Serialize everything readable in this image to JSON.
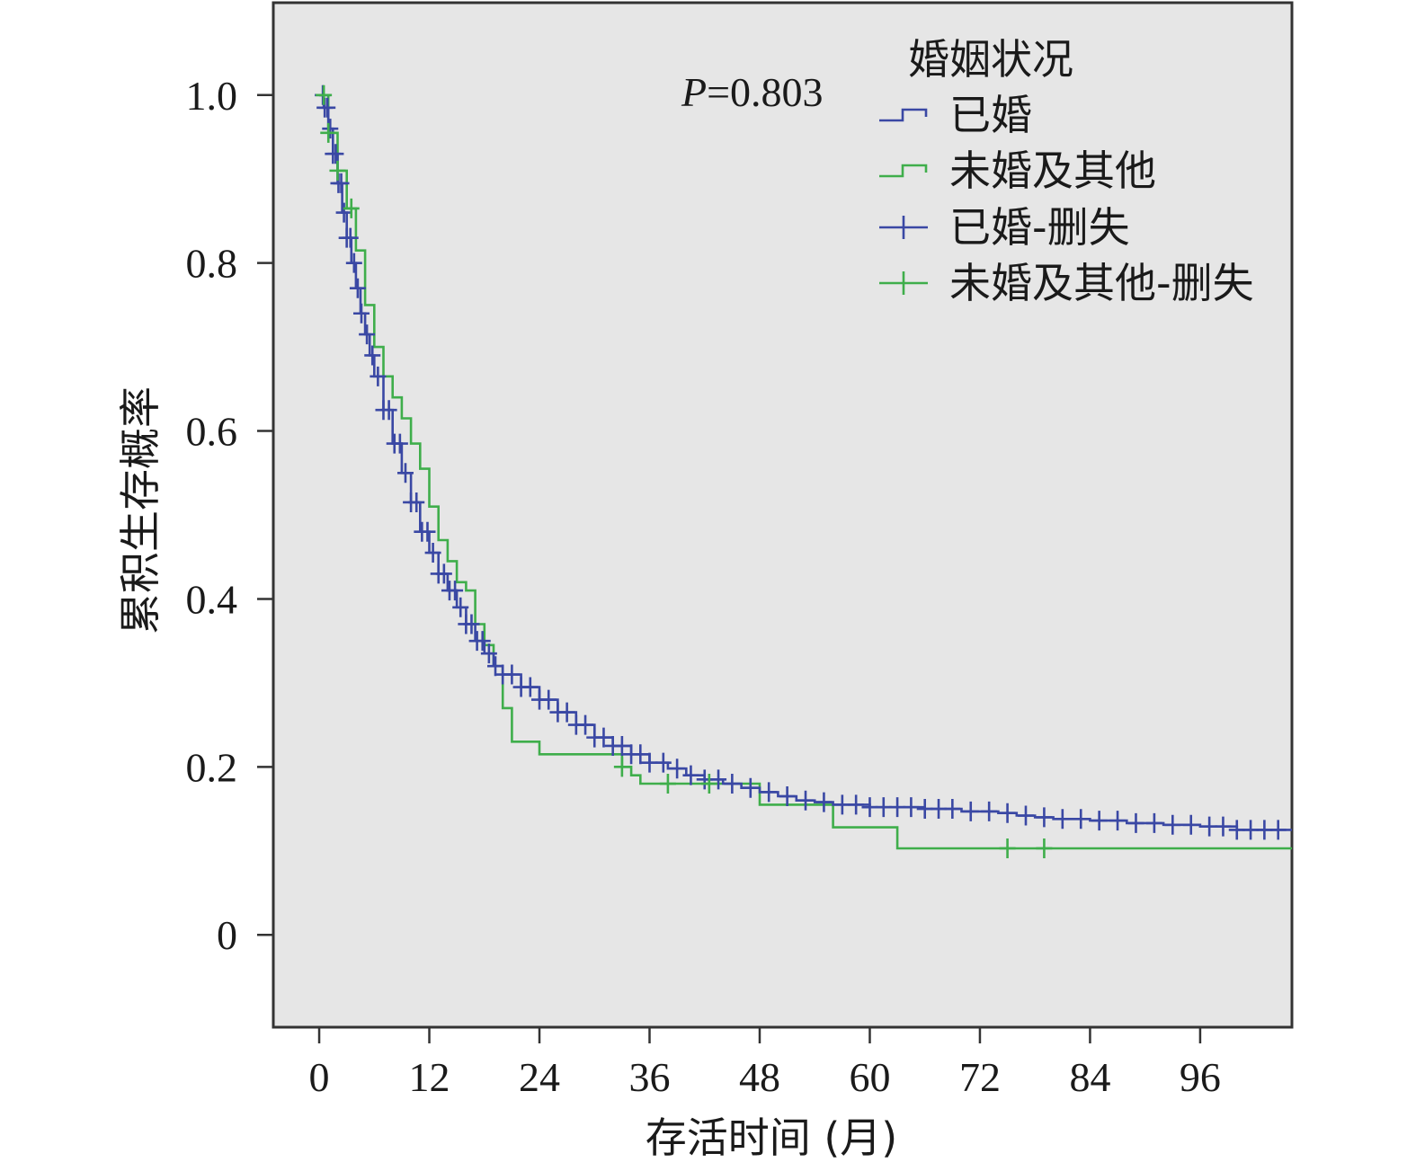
{
  "chart_data": {
    "type": "line",
    "subtype": "kaplan-meier",
    "xlabel": "存活时间 (月)",
    "ylabel": "累积生存概率",
    "xlim": [
      -5,
      106
    ],
    "ylim": [
      -0.11,
      1.11
    ],
    "xticks": [
      0,
      12,
      24,
      36,
      48,
      60,
      72,
      84,
      96
    ],
    "xtick_labels": [
      "0",
      "12",
      "24",
      "36",
      "48",
      "60",
      "72",
      "84",
      "96"
    ],
    "yticks": [
      0,
      0.2,
      0.4,
      0.6,
      0.8,
      1.0
    ],
    "ytick_labels": [
      "0",
      "0.2",
      "0.4",
      "0.6",
      "0.8",
      "1.0"
    ],
    "annotation": {
      "p_label": "P",
      "p_value": "=0.803"
    },
    "legend": {
      "title": "婚姻状况",
      "placement": "top-right",
      "entries": [
        {
          "label": "已婚",
          "kind": "step",
          "color": "#3a48a4"
        },
        {
          "label": "未婚及其他",
          "kind": "step",
          "color": "#3fae4b"
        },
        {
          "label": "已婚-删失",
          "kind": "censor",
          "color": "#3a48a4"
        },
        {
          "label": "未婚及其他-删失",
          "kind": "censor",
          "color": "#3fae4b"
        }
      ]
    },
    "series": [
      {
        "name": "已婚",
        "color": "#3a48a4",
        "x": [
          0,
          0.5,
          1,
          1.5,
          2,
          2.5,
          3,
          3.5,
          4,
          4.5,
          5,
          5.5,
          6,
          7,
          8,
          9,
          10,
          11,
          12,
          13,
          14,
          15,
          16,
          17,
          18,
          19,
          20,
          22,
          24,
          26,
          28,
          30,
          32,
          34,
          36,
          38,
          40,
          42,
          44,
          46,
          48,
          50,
          52,
          54,
          56,
          60,
          66,
          70,
          74,
          76,
          78,
          80,
          84,
          88,
          92,
          96,
          100,
          106
        ],
        "y": [
          1.0,
          0.985,
          0.96,
          0.93,
          0.895,
          0.86,
          0.83,
          0.8,
          0.77,
          0.74,
          0.715,
          0.69,
          0.665,
          0.625,
          0.585,
          0.55,
          0.515,
          0.48,
          0.455,
          0.43,
          0.41,
          0.39,
          0.37,
          0.35,
          0.335,
          0.32,
          0.31,
          0.295,
          0.28,
          0.265,
          0.25,
          0.235,
          0.225,
          0.215,
          0.205,
          0.198,
          0.19,
          0.185,
          0.18,
          0.175,
          0.17,
          0.165,
          0.16,
          0.158,
          0.155,
          0.152,
          0.15,
          0.147,
          0.145,
          0.142,
          0.14,
          0.138,
          0.136,
          0.133,
          0.131,
          0.129,
          0.125,
          0.125
        ],
        "censor_x": [
          0.4,
          0.6,
          0.9,
          1.2,
          1.5,
          1.8,
          2.1,
          2.4,
          2.7,
          3.0,
          3.4,
          3.8,
          4.2,
          4.6,
          5.2,
          5.8,
          6.4,
          7.0,
          7.6,
          8.2,
          8.8,
          9.4,
          10.0,
          10.6,
          11.2,
          11.8,
          12.4,
          13.0,
          13.6,
          14.2,
          14.8,
          15.4,
          16.0,
          16.6,
          17.2,
          17.8,
          18.5,
          19.2,
          20.0,
          21.0,
          22.0,
          23.0,
          24.0,
          25.0,
          26.0,
          27.0,
          28.0,
          29.0,
          30.0,
          31.0,
          32.0,
          33.0,
          34.0,
          35.0,
          36.0,
          37.5,
          39.0,
          40.5,
          42.0,
          43.5,
          45.0,
          47.0,
          49.0,
          51.0,
          53.0,
          55.0,
          57.0,
          58.5,
          60.0,
          61.5,
          63.0,
          64.5,
          66.0,
          67.5,
          69.0,
          71.0,
          73.0,
          75.0,
          77.0,
          79.0,
          81.0,
          83.0,
          85.0,
          87.0,
          89.0,
          91.0,
          93.0,
          95.0,
          97.0,
          98.5,
          100.0,
          101.5,
          103.0,
          104.5
        ]
      },
      {
        "name": "未婚及其他",
        "color": "#3fae4b",
        "x": [
          0,
          1,
          2,
          3,
          4,
          5,
          6,
          7,
          8,
          9,
          10,
          11,
          12,
          13,
          14,
          15,
          16,
          17,
          18,
          19,
          20,
          21,
          24,
          33,
          34,
          35,
          40,
          42,
          48,
          56,
          63,
          106
        ],
        "y": [
          1.0,
          0.955,
          0.91,
          0.865,
          0.815,
          0.75,
          0.7,
          0.665,
          0.64,
          0.615,
          0.585,
          0.555,
          0.51,
          0.47,
          0.445,
          0.42,
          0.41,
          0.37,
          0.345,
          0.32,
          0.27,
          0.23,
          0.215,
          0.2,
          0.19,
          0.18,
          0.18,
          0.18,
          0.155,
          0.128,
          0.103,
          0.103
        ],
        "censor_x": [
          0.5,
          1.0,
          2.0,
          3.5,
          33.0,
          38.0,
          42.5,
          75.0,
          79.0
        ]
      }
    ]
  }
}
